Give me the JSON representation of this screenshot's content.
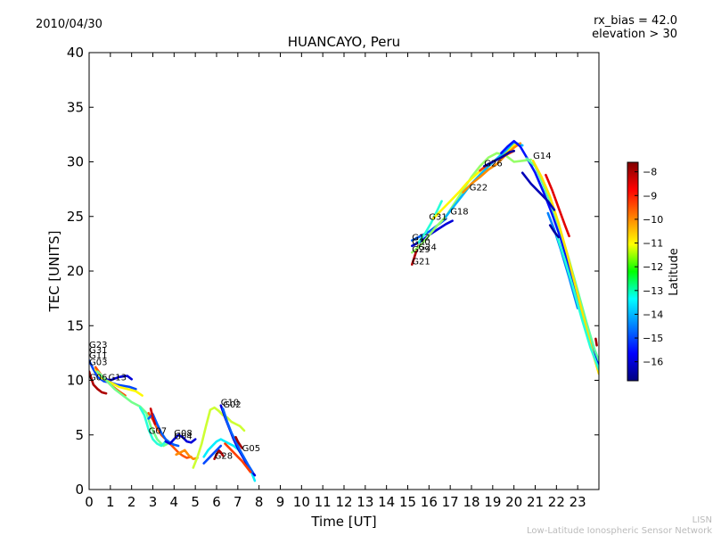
{
  "header": {
    "date": "2010/04/30",
    "rx_bias": "rx_bias = 42.0",
    "elevation": "elevation > 30"
  },
  "footer": {
    "line1": "LISN",
    "line2": "Low-Latitude Ionospheric Sensor Network"
  },
  "chart_data": {
    "type": "scatter",
    "title": "HUANCAYO, Peru",
    "xlabel": "Time [UT]",
    "ylabel": "TEC [UNITS]",
    "xlim": [
      0,
      24
    ],
    "ylim": [
      0,
      40
    ],
    "xticks": [
      0,
      1,
      2,
      3,
      4,
      5,
      6,
      7,
      8,
      9,
      10,
      11,
      12,
      13,
      14,
      15,
      16,
      17,
      18,
      19,
      20,
      21,
      22,
      23
    ],
    "yticks": [
      0,
      5,
      10,
      15,
      20,
      25,
      30,
      35,
      40
    ],
    "grid": false,
    "colorbar": {
      "label": "Latitude",
      "range": [
        -16.8,
        -7.6
      ],
      "ticks": [
        -8,
        -9,
        -10,
        -11,
        -12,
        -13,
        -14,
        -15,
        -16
      ],
      "colormap": "jet"
    },
    "satellite_labels": [
      {
        "name": "G23",
        "x": 0.0,
        "y": 13.0
      },
      {
        "name": "G31",
        "x": 0.0,
        "y": 12.5
      },
      {
        "name": "G11",
        "x": 0.0,
        "y": 12.0
      },
      {
        "name": "G03",
        "x": 0.0,
        "y": 11.4
      },
      {
        "name": "G06",
        "x": 0.0,
        "y": 10.0
      },
      {
        "name": "G13",
        "x": 0.9,
        "y": 10.0
      },
      {
        "name": "G07",
        "x": 2.8,
        "y": 5.1
      },
      {
        "name": "G08",
        "x": 4.0,
        "y": 4.9
      },
      {
        "name": "G04",
        "x": 4.0,
        "y": 4.6
      },
      {
        "name": "G10",
        "x": 6.2,
        "y": 7.7
      },
      {
        "name": "G02",
        "x": 6.3,
        "y": 7.5
      },
      {
        "name": "G28",
        "x": 5.9,
        "y": 2.8
      },
      {
        "name": "G05",
        "x": 7.2,
        "y": 3.5
      },
      {
        "name": "G12",
        "x": 15.2,
        "y": 22.8
      },
      {
        "name": "G30",
        "x": 15.2,
        "y": 22.4
      },
      {
        "name": "G24",
        "x": 15.5,
        "y": 21.9
      },
      {
        "name": "G29",
        "x": 15.2,
        "y": 21.7
      },
      {
        "name": "G21",
        "x": 15.2,
        "y": 20.6
      },
      {
        "name": "G31",
        "x": 16.0,
        "y": 24.7
      },
      {
        "name": "G18",
        "x": 17.0,
        "y": 25.2
      },
      {
        "name": "G22",
        "x": 17.9,
        "y": 27.4
      },
      {
        "name": "G26",
        "x": 18.6,
        "y": 29.6
      },
      {
        "name": "G14",
        "x": 20.9,
        "y": 30.3
      }
    ],
    "series": [
      {
        "color": -16.0,
        "x": [
          0.6,
          1.0,
          1.4,
          1.8,
          2.0
        ],
        "y": [
          10.2,
          10.0,
          10.3,
          10.4,
          10.1
        ]
      },
      {
        "color": -15.0,
        "x": [
          0.0,
          0.2,
          0.4,
          0.7,
          1.0,
          1.3,
          1.6,
          1.9,
          2.2
        ],
        "y": [
          11.8,
          11.0,
          10.3,
          9.9,
          9.8,
          9.6,
          9.5,
          9.4,
          9.2
        ]
      },
      {
        "color": -11.0,
        "x": [
          0.3,
          0.6,
          1.0,
          1.4,
          1.8,
          2.2,
          2.5
        ],
        "y": [
          11.0,
          10.2,
          9.8,
          9.4,
          9.2,
          9.0,
          8.6
        ]
      },
      {
        "color": -8.0,
        "x": [
          0.0,
          0.1,
          0.2,
          0.4,
          0.6,
          0.8
        ],
        "y": [
          10.8,
          10.2,
          9.6,
          9.2,
          8.9,
          8.8
        ]
      },
      {
        "color": -9.5,
        "x": [
          0.3,
          0.6,
          1.0,
          1.4,
          1.7
        ],
        "y": [
          11.2,
          10.4,
          9.6,
          9.0,
          8.6
        ]
      },
      {
        "color": -12.3,
        "x": [
          0.4,
          0.8,
          1.2,
          1.6,
          2.0,
          2.4,
          2.7,
          2.9,
          3.2,
          3.5,
          3.8
        ],
        "y": [
          10.8,
          10.0,
          9.2,
          8.6,
          8.0,
          7.6,
          7.0,
          5.8,
          4.6,
          4.0,
          4.3
        ]
      },
      {
        "color": -13.0,
        "x": [
          2.4,
          2.6,
          2.8,
          3.0,
          3.2,
          3.4,
          3.6
        ],
        "y": [
          7.5,
          6.8,
          5.5,
          4.6,
          4.2,
          4.0,
          4.4
        ]
      },
      {
        "color": -9.5,
        "x": [
          2.8,
          3.0,
          3.2,
          3.4,
          3.6,
          3.8,
          4.0,
          4.2,
          4.4,
          4.6,
          4.8
        ],
        "y": [
          7.0,
          6.4,
          5.6,
          5.0,
          4.6,
          4.2,
          3.8,
          3.4,
          3.1,
          2.9,
          3.0
        ]
      },
      {
        "color": -14.8,
        "x": [
          2.8,
          3.0,
          3.2,
          3.4,
          3.6,
          3.8,
          4.0,
          4.2
        ],
        "y": [
          6.5,
          6.9,
          6.0,
          5.2,
          4.6,
          4.3,
          4.1,
          4.0
        ]
      },
      {
        "color": -16.0,
        "x": [
          3.6,
          3.8,
          4.0,
          4.2,
          4.4,
          4.6,
          4.8,
          5.0
        ],
        "y": [
          4.4,
          4.2,
          4.6,
          5.0,
          4.8,
          4.4,
          4.3,
          4.6
        ]
      },
      {
        "color": -8.3,
        "x": [
          2.9,
          3.0,
          3.1
        ],
        "y": [
          7.4,
          6.6,
          6.0
        ]
      },
      {
        "color": -10.0,
        "x": [
          4.1,
          4.3,
          4.5,
          4.7,
          4.9,
          5.1
        ],
        "y": [
          3.2,
          3.4,
          3.6,
          3.1,
          2.8,
          2.9
        ]
      },
      {
        "color": -11.5,
        "x": [
          4.9,
          5.1,
          5.3,
          5.5,
          5.7,
          5.9,
          6.1,
          6.3,
          6.5,
          6.7,
          6.9,
          7.1,
          7.3
        ],
        "y": [
          2.0,
          3.0,
          4.2,
          5.8,
          7.3,
          7.5,
          7.2,
          6.8,
          6.6,
          6.2,
          6.0,
          5.8,
          5.4
        ]
      },
      {
        "color": -13.5,
        "x": [
          5.4,
          5.6,
          5.8,
          6.0,
          6.2,
          6.4,
          6.6,
          6.8,
          7.0,
          7.2,
          7.4,
          7.6,
          7.8
        ],
        "y": [
          3.0,
          3.6,
          4.0,
          4.4,
          4.6,
          4.4,
          4.2,
          4.0,
          3.7,
          3.2,
          2.5,
          1.8,
          0.8
        ]
      },
      {
        "color": -16.0,
        "x": [
          6.2,
          6.4,
          6.6,
          6.8,
          7.0,
          7.2,
          7.4,
          7.6,
          7.8
        ],
        "y": [
          7.7,
          6.6,
          5.6,
          4.6,
          3.8,
          3.1,
          2.4,
          1.8,
          1.3
        ]
      },
      {
        "color": -14.8,
        "x": [
          6.3,
          6.5,
          6.7,
          6.9,
          7.1,
          7.3,
          7.5,
          7.7
        ],
        "y": [
          7.4,
          6.2,
          5.2,
          4.4,
          3.6,
          2.9,
          2.2,
          1.6
        ]
      },
      {
        "color": -8.0,
        "x": [
          5.9,
          6.0,
          6.1,
          6.2,
          6.3
        ],
        "y": [
          2.8,
          3.2,
          3.6,
          3.4,
          3.1
        ]
      },
      {
        "color": -9.3,
        "x": [
          6.4,
          6.6,
          6.8,
          7.0,
          7.2,
          7.4,
          7.6
        ],
        "y": [
          4.2,
          3.8,
          3.4,
          3.0,
          2.6,
          2.1,
          1.6
        ]
      },
      {
        "color": -7.9,
        "x": [
          6.9,
          7.0,
          7.1,
          7.2
        ],
        "y": [
          4.8,
          4.4,
          4.1,
          3.8
        ]
      },
      {
        "color": -15.0,
        "x": [
          5.4,
          5.6,
          5.8,
          6.0,
          6.2
        ],
        "y": [
          2.4,
          2.8,
          3.2,
          3.6,
          4.0
        ]
      },
      {
        "color": -8.0,
        "x": [
          15.2,
          15.3,
          15.4,
          15.5
        ],
        "y": [
          20.6,
          21.2,
          21.8,
          22.3
        ]
      },
      {
        "color": -16.0,
        "x": [
          15.2,
          15.6,
          16.0,
          16.4,
          16.8,
          17.1
        ],
        "y": [
          22.3,
          22.7,
          23.3,
          23.8,
          24.3,
          24.6
        ]
      },
      {
        "color": -14.8,
        "x": [
          15.2,
          15.6,
          16.0,
          16.4,
          16.8
        ],
        "y": [
          22.8,
          23.2,
          23.6,
          24.2,
          24.8
        ]
      },
      {
        "color": -13.0,
        "x": [
          15.5,
          15.8,
          16.1,
          16.4,
          16.6
        ],
        "y": [
          22.6,
          23.4,
          24.4,
          25.6,
          26.4
        ]
      },
      {
        "color": -12.0,
        "x": [
          15.2,
          15.5,
          15.8,
          16.1,
          16.4,
          16.8,
          17.2,
          17.6,
          18.0,
          18.4,
          18.8,
          19.2,
          19.6,
          20.0,
          20.4,
          20.8
        ],
        "y": [
          21.7,
          22.2,
          22.8,
          23.5,
          24.2,
          25.0,
          26.2,
          27.4,
          28.6,
          29.6,
          30.4,
          30.8,
          30.6,
          30.0,
          30.1,
          30.2
        ]
      },
      {
        "color": -11.0,
        "x": [
          16.2,
          16.6,
          17.0,
          17.4,
          17.8,
          18.2,
          18.6,
          19.0,
          19.4,
          19.8,
          20.1
        ],
        "y": [
          24.8,
          25.6,
          26.4,
          27.2,
          28.1,
          28.8,
          29.5,
          30.0,
          30.5,
          31.2,
          31.7
        ]
      },
      {
        "color": -14.0,
        "x": [
          16.8,
          17.2,
          17.6,
          18.0,
          18.4,
          18.8,
          19.2,
          19.6,
          20.0,
          20.4
        ],
        "y": [
          25.0,
          26.0,
          27.0,
          28.0,
          28.8,
          29.6,
          30.3,
          31.0,
          31.8,
          31.5
        ]
      },
      {
        "color": -10.0,
        "x": [
          17.6,
          18.0,
          18.4,
          18.8,
          19.2,
          19.6,
          20.0,
          20.3
        ],
        "y": [
          27.2,
          28.0,
          28.6,
          29.3,
          29.8,
          30.6,
          31.3,
          31.7
        ]
      },
      {
        "color": -9.3,
        "x": [
          18.4,
          18.8,
          19.2,
          19.6,
          20.0
        ],
        "y": [
          29.2,
          29.8,
          30.2,
          30.6,
          31.0
        ]
      },
      {
        "color": -16.5,
        "x": [
          18.6,
          19.0,
          19.4,
          19.8,
          20.0
        ],
        "y": [
          29.6,
          30.0,
          30.4,
          30.9,
          31.0
        ]
      },
      {
        "color": -15.5,
        "x": [
          19.4,
          19.7,
          20.0,
          20.3,
          20.6,
          21.0,
          21.4,
          21.8,
          22.2,
          22.6,
          23.0,
          23.4,
          23.8,
          24.0
        ],
        "y": [
          30.8,
          31.4,
          31.9,
          31.4,
          30.4,
          29.0,
          27.2,
          25.2,
          23.0,
          20.4,
          17.5,
          14.8,
          12.4,
          11.4
        ]
      },
      {
        "color": -12.5,
        "x": [
          20.6,
          21.0,
          21.4,
          21.8,
          22.2,
          22.6,
          23.0,
          23.4,
          23.8,
          24.0
        ],
        "y": [
          30.3,
          29.6,
          27.8,
          25.8,
          23.6,
          21.0,
          18.2,
          15.4,
          12.8,
          11.8
        ]
      },
      {
        "color": -10.8,
        "x": [
          20.9,
          21.3,
          21.7,
          22.1,
          22.5,
          22.9,
          23.3,
          23.7,
          24.0
        ],
        "y": [
          30.1,
          28.6,
          26.8,
          24.4,
          21.6,
          18.6,
          15.6,
          12.6,
          10.6
        ]
      },
      {
        "color": -16.3,
        "x": [
          20.4,
          20.8,
          21.2,
          21.6,
          21.9
        ],
        "y": [
          29.0,
          28.0,
          27.2,
          26.4,
          25.6
        ]
      },
      {
        "color": -14.5,
        "x": [
          21.6,
          21.9,
          22.2,
          22.6,
          23.0
        ],
        "y": [
          25.3,
          23.8,
          22.0,
          19.4,
          16.6
        ]
      },
      {
        "color": -8.5,
        "x": [
          21.5,
          21.8,
          22.1,
          22.4,
          22.6
        ],
        "y": [
          28.8,
          27.4,
          25.8,
          24.2,
          23.2
        ]
      },
      {
        "color": -13.0,
        "x": [
          22.0,
          22.4,
          22.8,
          23.2,
          23.6,
          24.0
        ],
        "y": [
          23.4,
          21.0,
          18.4,
          15.6,
          13.0,
          11.0
        ]
      },
      {
        "color": -16.5,
        "x": [
          21.7,
          21.9,
          22.1
        ],
        "y": [
          24.2,
          23.6,
          23.1
        ]
      },
      {
        "color": -7.9,
        "x": [
          23.85,
          23.9
        ],
        "y": [
          13.8,
          13.2
        ]
      }
    ]
  }
}
